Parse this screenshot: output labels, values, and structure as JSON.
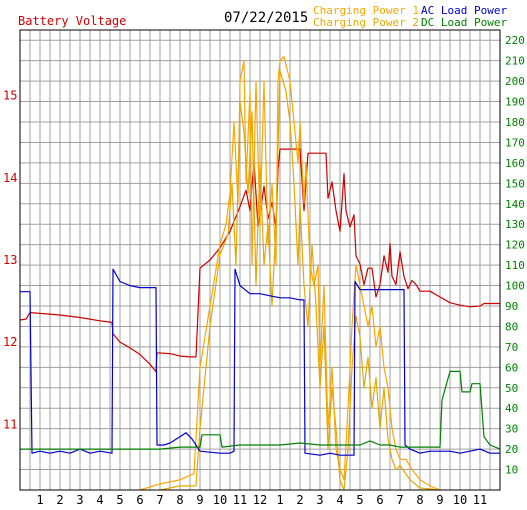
{
  "chart_data": {
    "type": "line",
    "date": "07/22/2015",
    "left_axis": {
      "label": "Battery Voltage",
      "color": "#cc0000",
      "ticks": [
        11,
        12,
        13,
        14,
        15
      ],
      "range": [
        10.2,
        15.8
      ]
    },
    "right_axis": {
      "color": "#008000",
      "ticks": [
        10,
        20,
        30,
        40,
        50,
        60,
        70,
        80,
        90,
        100,
        110,
        120,
        130,
        140,
        150,
        160,
        170,
        180,
        190,
        200,
        210,
        220
      ],
      "range": [
        0,
        225
      ]
    },
    "x_axis": {
      "tick_labels": [
        "1",
        "2",
        "3",
        "4",
        "5",
        "6",
        "7",
        "8",
        "9",
        "10",
        "11",
        "12",
        "1",
        "2",
        "3",
        "4",
        "5",
        "6",
        "7",
        "8",
        "9",
        "10",
        "11"
      ],
      "range": [
        0,
        24
      ]
    },
    "grid": true,
    "legend": [
      {
        "name": "Charging Power 1",
        "color": "#ffa500"
      },
      {
        "name": "Charging Power 2",
        "color": "#e6a800"
      },
      {
        "name": "AC Load Power",
        "color": "#0000cc"
      },
      {
        "name": "DC Load Power",
        "color": "#008000"
      }
    ],
    "series": [
      {
        "name": "Battery Voltage",
        "axis": "left",
        "color": "#cc0000",
        "points": [
          [
            0,
            12.27
          ],
          [
            0.3,
            12.28
          ],
          [
            0.5,
            12.36
          ],
          [
            1,
            12.35
          ],
          [
            2,
            12.33
          ],
          [
            3,
            12.3
          ],
          [
            4,
            12.26
          ],
          [
            4.6,
            12.24
          ],
          [
            4.65,
            12.1
          ],
          [
            5,
            12.0
          ],
          [
            5.5,
            11.93
          ],
          [
            6,
            11.85
          ],
          [
            6.5,
            11.73
          ],
          [
            6.8,
            11.64
          ],
          [
            6.85,
            11.87
          ],
          [
            7.5,
            11.86
          ],
          [
            8,
            11.83
          ],
          [
            8.5,
            11.82
          ],
          [
            8.8,
            11.82
          ],
          [
            9,
            12.9
          ],
          [
            9.5,
            13.0
          ],
          [
            10,
            13.15
          ],
          [
            10.5,
            13.35
          ],
          [
            11,
            13.65
          ],
          [
            11.3,
            13.85
          ],
          [
            11.5,
            13.6
          ],
          [
            11.7,
            14.2
          ],
          [
            11.9,
            13.4
          ],
          [
            12,
            13.55
          ],
          [
            12.2,
            13.9
          ],
          [
            12.4,
            13.5
          ],
          [
            12.6,
            13.7
          ],
          [
            12.8,
            13.4
          ],
          [
            12.9,
            14.1
          ],
          [
            13,
            14.35
          ],
          [
            13.5,
            14.35
          ],
          [
            14,
            14.35
          ],
          [
            14.2,
            13.6
          ],
          [
            14.4,
            14.3
          ],
          [
            15,
            14.3
          ],
          [
            15.3,
            14.3
          ],
          [
            15.4,
            13.75
          ],
          [
            15.6,
            13.95
          ],
          [
            15.8,
            13.6
          ],
          [
            16,
            13.35
          ],
          [
            16.2,
            14.05
          ],
          [
            16.3,
            13.6
          ],
          [
            16.5,
            13.4
          ],
          [
            16.7,
            13.55
          ],
          [
            16.8,
            13.05
          ],
          [
            17,
            12.95
          ],
          [
            17.2,
            12.7
          ],
          [
            17.4,
            12.9
          ],
          [
            17.6,
            12.9
          ],
          [
            17.8,
            12.55
          ],
          [
            18,
            12.7
          ],
          [
            18.2,
            13.05
          ],
          [
            18.4,
            12.85
          ],
          [
            18.5,
            13.2
          ],
          [
            18.6,
            12.8
          ],
          [
            18.8,
            12.7
          ],
          [
            19,
            13.1
          ],
          [
            19.2,
            12.8
          ],
          [
            19.4,
            12.65
          ],
          [
            19.6,
            12.75
          ],
          [
            19.8,
            12.7
          ],
          [
            20,
            12.62
          ],
          [
            20.5,
            12.62
          ],
          [
            21,
            12.55
          ],
          [
            21.5,
            12.48
          ],
          [
            22,
            12.45
          ],
          [
            22.5,
            12.43
          ],
          [
            23,
            12.44
          ],
          [
            23.2,
            12.47
          ],
          [
            24,
            12.47
          ]
        ]
      },
      {
        "name": "Charging Power 1",
        "axis": "right",
        "color": "#ffa500",
        "points": [
          [
            6,
            0
          ],
          [
            7,
            3
          ],
          [
            8,
            5
          ],
          [
            8.7,
            8
          ],
          [
            9,
            60
          ],
          [
            9.5,
            90
          ],
          [
            10,
            120
          ],
          [
            10.3,
            130
          ],
          [
            10.5,
            145
          ],
          [
            10.7,
            180
          ],
          [
            10.9,
            140
          ],
          [
            11,
            200
          ],
          [
            11.2,
            210
          ],
          [
            11.3,
            150
          ],
          [
            11.5,
            195
          ],
          [
            11.6,
            110
          ],
          [
            11.8,
            200
          ],
          [
            12,
            130
          ],
          [
            12.2,
            200
          ],
          [
            12.4,
            120
          ],
          [
            12.6,
            150
          ],
          [
            12.8,
            110
          ],
          [
            12.9,
            200
          ],
          [
            13,
            210
          ],
          [
            13.2,
            212
          ],
          [
            13.5,
            200
          ],
          [
            13.7,
            180
          ],
          [
            13.9,
            160
          ],
          [
            14,
            180
          ],
          [
            14.2,
            140
          ],
          [
            14.3,
            160
          ],
          [
            14.5,
            110
          ],
          [
            14.7,
            100
          ],
          [
            14.9,
            110
          ],
          [
            15,
            60
          ],
          [
            15.2,
            100
          ],
          [
            15.4,
            30
          ],
          [
            15.6,
            60
          ],
          [
            15.8,
            20
          ],
          [
            16,
            10
          ],
          [
            16.2,
            5
          ],
          [
            16.4,
            40
          ],
          [
            16.6,
            80
          ],
          [
            16.8,
            110
          ],
          [
            17,
            100
          ],
          [
            17.2,
            90
          ],
          [
            17.4,
            80
          ],
          [
            17.6,
            90
          ],
          [
            17.8,
            70
          ],
          [
            18,
            80
          ],
          [
            18.2,
            60
          ],
          [
            18.4,
            50
          ],
          [
            18.6,
            30
          ],
          [
            18.8,
            20
          ],
          [
            19,
            15
          ],
          [
            19.3,
            15
          ],
          [
            19.6,
            10
          ],
          [
            20,
            5
          ],
          [
            20.5,
            2
          ],
          [
            21,
            0
          ]
        ]
      },
      {
        "name": "Charging Power 2",
        "axis": "right",
        "color": "#e6a800",
        "points": [
          [
            7,
            0
          ],
          [
            8,
            2
          ],
          [
            8.8,
            2
          ],
          [
            9,
            30
          ],
          [
            9.5,
            80
          ],
          [
            10,
            115
          ],
          [
            10.4,
            125
          ],
          [
            10.6,
            150
          ],
          [
            10.8,
            110
          ],
          [
            11,
            190
          ],
          [
            11.2,
            175
          ],
          [
            11.4,
            145
          ],
          [
            11.6,
            185
          ],
          [
            11.8,
            100
          ],
          [
            12,
            160
          ],
          [
            12.2,
            110
          ],
          [
            12.4,
            130
          ],
          [
            12.6,
            90
          ],
          [
            12.8,
            130
          ],
          [
            13,
            205
          ],
          [
            13.3,
            195
          ],
          [
            13.5,
            180
          ],
          [
            13.7,
            150
          ],
          [
            13.9,
            110
          ],
          [
            14,
            140
          ],
          [
            14.2,
            100
          ],
          [
            14.4,
            80
          ],
          [
            14.6,
            120
          ],
          [
            14.8,
            90
          ],
          [
            15,
            50
          ],
          [
            15.2,
            80
          ],
          [
            15.4,
            20
          ],
          [
            15.6,
            50
          ],
          [
            15.8,
            30
          ],
          [
            16,
            5
          ],
          [
            16.2,
            0
          ],
          [
            16.4,
            20
          ],
          [
            16.6,
            60
          ],
          [
            16.8,
            85
          ],
          [
            17,
            75
          ],
          [
            17.2,
            50
          ],
          [
            17.4,
            65
          ],
          [
            17.6,
            40
          ],
          [
            17.8,
            55
          ],
          [
            18,
            30
          ],
          [
            18.2,
            50
          ],
          [
            18.4,
            25
          ],
          [
            18.6,
            15
          ],
          [
            18.8,
            10
          ],
          [
            19,
            12
          ],
          [
            19.5,
            5
          ],
          [
            20,
            1
          ],
          [
            21,
            0
          ]
        ]
      },
      {
        "name": "AC Load Power",
        "axis": "right",
        "color": "#0000cc",
        "points": [
          [
            0,
            97
          ],
          [
            0.3,
            97
          ],
          [
            0.5,
            97
          ],
          [
            0.6,
            18
          ],
          [
            1,
            19
          ],
          [
            1.5,
            18
          ],
          [
            2,
            19
          ],
          [
            2.5,
            18
          ],
          [
            3,
            20
          ],
          [
            3.5,
            18
          ],
          [
            4,
            19
          ],
          [
            4.6,
            18
          ],
          [
            4.65,
            108
          ],
          [
            5,
            102
          ],
          [
            5.5,
            100
          ],
          [
            6,
            99
          ],
          [
            6.5,
            99
          ],
          [
            6.8,
            99
          ],
          [
            6.85,
            22
          ],
          [
            7.2,
            22
          ],
          [
            7.5,
            23
          ],
          [
            8,
            26
          ],
          [
            8.3,
            28
          ],
          [
            8.6,
            25
          ],
          [
            8.8,
            22
          ],
          [
            9,
            19
          ],
          [
            10,
            18
          ],
          [
            10.5,
            18
          ],
          [
            10.7,
            19
          ],
          [
            10.75,
            108
          ],
          [
            11,
            100
          ],
          [
            11.5,
            96
          ],
          [
            12,
            96
          ],
          [
            12.5,
            95
          ],
          [
            13,
            94
          ],
          [
            13.5,
            94
          ],
          [
            14,
            93
          ],
          [
            14.2,
            93
          ],
          [
            14.25,
            18
          ],
          [
            15,
            17
          ],
          [
            15.5,
            18
          ],
          [
            16,
            17
          ],
          [
            16.5,
            17
          ],
          [
            16.7,
            17
          ],
          [
            16.75,
            102
          ],
          [
            17,
            98
          ],
          [
            17.5,
            98
          ],
          [
            18,
            98
          ],
          [
            18.5,
            98
          ],
          [
            19,
            98
          ],
          [
            19.2,
            98
          ],
          [
            19.25,
            22
          ],
          [
            19.5,
            20
          ],
          [
            20,
            18
          ],
          [
            20.5,
            19
          ],
          [
            21,
            19
          ],
          [
            21.5,
            19
          ],
          [
            22,
            18
          ],
          [
            22.5,
            19
          ],
          [
            23,
            20
          ],
          [
            23.5,
            18
          ],
          [
            24,
            18
          ]
        ]
      },
      {
        "name": "DC Load Power",
        "axis": "right",
        "color": "#008000",
        "points": [
          [
            0,
            20
          ],
          [
            1,
            20
          ],
          [
            2,
            20
          ],
          [
            3,
            20
          ],
          [
            4,
            20
          ],
          [
            5,
            20
          ],
          [
            6,
            20
          ],
          [
            7,
            20
          ],
          [
            8,
            21
          ],
          [
            9,
            21
          ],
          [
            9.1,
            27
          ],
          [
            9.5,
            27
          ],
          [
            10,
            27
          ],
          [
            10.1,
            21
          ],
          [
            11,
            22
          ],
          [
            12,
            22
          ],
          [
            13,
            22
          ],
          [
            14,
            23
          ],
          [
            15,
            22
          ],
          [
            16,
            22
          ],
          [
            17,
            22
          ],
          [
            17.5,
            24
          ],
          [
            18,
            22
          ],
          [
            18.5,
            22
          ],
          [
            19,
            21
          ],
          [
            20,
            21
          ],
          [
            21,
            21
          ],
          [
            21.1,
            44
          ],
          [
            21.5,
            58
          ],
          [
            22,
            58
          ],
          [
            22.1,
            48
          ],
          [
            22.5,
            48
          ],
          [
            22.6,
            52
          ],
          [
            23,
            52
          ],
          [
            23.2,
            26
          ],
          [
            23.5,
            22
          ],
          [
            24,
            20
          ]
        ]
      }
    ]
  }
}
